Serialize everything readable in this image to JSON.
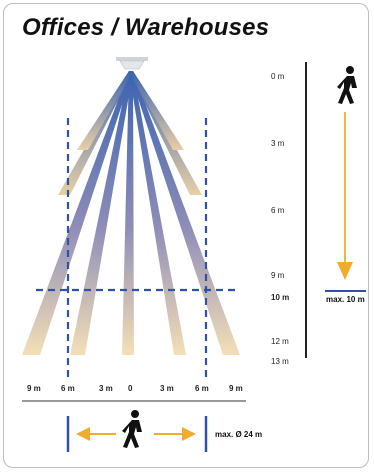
{
  "title": "Offices / Warehouses",
  "distance_labels": [
    "0 m",
    "3 m",
    "6 m",
    "9 m",
    "10 m",
    "12 m",
    "13 m"
  ],
  "width_labels": [
    "9 m",
    "6 m",
    "3 m",
    "0",
    "3 m",
    "6 m",
    "9 m"
  ],
  "max_height_label": "max. 10 m",
  "max_diameter_label": "max. Ø 24 m",
  "colors": {
    "beam_top": "#3a63b0",
    "beam_bottom": "#f1dcb4",
    "dashed_line": "#2f52a8",
    "arrow_orange": "#f0ac2c",
    "axis_line": "#222222"
  },
  "icons": [
    "sensor-icon",
    "walking-person-icon",
    "walking-person-icon"
  ]
}
